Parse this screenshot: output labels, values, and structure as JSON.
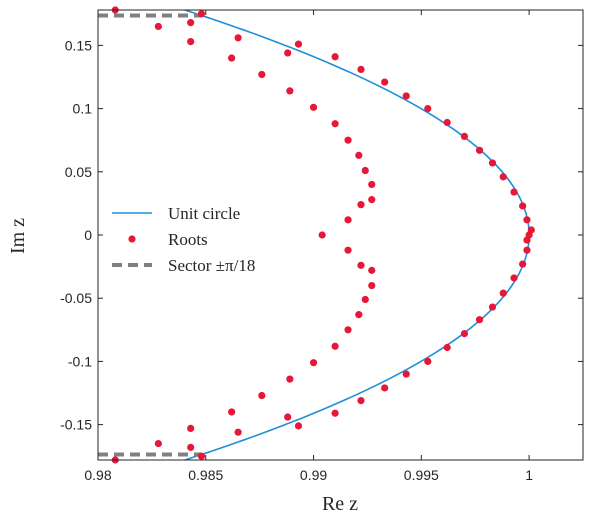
{
  "chart_data": {
    "type": "scatter",
    "title": "",
    "xlabel": "Re z",
    "ylabel": "Im z",
    "xlim": [
      0.98,
      1.0025
    ],
    "ylim": [
      -0.178,
      0.178
    ],
    "x_ticks": [
      0.98,
      0.985,
      0.99,
      0.995,
      1.0
    ],
    "x_tick_labels": [
      "0.98",
      "0.985",
      "0.99",
      "0.995",
      "1"
    ],
    "y_ticks": [
      0.15,
      0.1,
      0.05,
      0,
      -0.05,
      -0.1,
      -0.15
    ],
    "y_tick_labels": [
      "0.15",
      "0.1",
      "0.05",
      "0",
      "-0.05",
      "-0.1",
      "-0.15"
    ],
    "grid": false,
    "legend_position": "middle-left",
    "legend": [
      {
        "label": "Unit circle",
        "style": "line"
      },
      {
        "label": "Roots",
        "style": "marker"
      },
      {
        "label": "Sector ±π/18",
        "style": "dashed"
      }
    ],
    "series": [
      {
        "name": "Unit circle",
        "kind": "line",
        "color": "#1f8fd8",
        "equation": "x^2 + y^2 = 1"
      },
      {
        "name": "Roots",
        "kind": "points",
        "color": "#e8173a",
        "points": [
          [
            0.9808,
            0.178
          ],
          [
            0.9848,
            0.175
          ],
          [
            0.9828,
            0.165
          ],
          [
            0.9843,
            0.168
          ],
          [
            0.9843,
            0.153
          ],
          [
            0.9865,
            0.156
          ],
          [
            0.9862,
            0.14
          ],
          [
            0.9888,
            0.144
          ],
          [
            0.9876,
            0.127
          ],
          [
            0.9893,
            0.151
          ],
          [
            0.9889,
            0.114
          ],
          [
            0.991,
            0.141
          ],
          [
            0.99,
            0.101
          ],
          [
            0.9922,
            0.131
          ],
          [
            0.991,
            0.088
          ],
          [
            0.9933,
            0.121
          ],
          [
            0.9916,
            0.075
          ],
          [
            0.9943,
            0.11
          ],
          [
            0.9921,
            0.063
          ],
          [
            0.9953,
            0.1
          ],
          [
            0.9924,
            0.051
          ],
          [
            0.9962,
            0.089
          ],
          [
            0.9927,
            0.04
          ],
          [
            0.997,
            0.078
          ],
          [
            0.9927,
            0.028
          ],
          [
            0.9977,
            0.067
          ],
          [
            0.9922,
            0.024
          ],
          [
            0.9983,
            0.057
          ],
          [
            0.9916,
            0.012
          ],
          [
            0.9988,
            0.046
          ],
          [
            0.9904,
            0.0
          ],
          [
            0.9993,
            0.034
          ],
          [
            0.9997,
            0.023
          ],
          [
            0.9999,
            0.012
          ],
          [
            1.0001,
            0.004
          ],
          [
            1.0,
            0.0
          ],
          [
            0.9999,
            -0.004
          ],
          [
            0.9997,
            -0.023
          ],
          [
            0.9999,
            -0.012
          ],
          [
            0.9993,
            -0.034
          ],
          [
            0.9988,
            -0.046
          ],
          [
            0.9983,
            -0.057
          ],
          [
            0.9977,
            -0.067
          ],
          [
            0.997,
            -0.078
          ],
          [
            0.9962,
            -0.089
          ],
          [
            0.9953,
            -0.1
          ],
          [
            0.9943,
            -0.11
          ],
          [
            0.9933,
            -0.121
          ],
          [
            0.9922,
            -0.131
          ],
          [
            0.991,
            -0.141
          ],
          [
            0.9893,
            -0.151
          ],
          [
            0.9916,
            -0.012
          ],
          [
            0.9922,
            -0.024
          ],
          [
            0.9927,
            -0.028
          ],
          [
            0.9927,
            -0.04
          ],
          [
            0.9924,
            -0.051
          ],
          [
            0.9921,
            -0.063
          ],
          [
            0.9916,
            -0.075
          ],
          [
            0.991,
            -0.088
          ],
          [
            0.99,
            -0.101
          ],
          [
            0.9889,
            -0.114
          ],
          [
            0.9876,
            -0.127
          ],
          [
            0.9862,
            -0.14
          ],
          [
            0.9865,
            -0.156
          ],
          [
            0.9843,
            -0.153
          ],
          [
            0.9843,
            -0.168
          ],
          [
            0.9828,
            -0.165
          ],
          [
            0.9848,
            -0.175
          ],
          [
            0.9808,
            -0.178
          ],
          [
            0.9888,
            -0.144
          ]
        ]
      },
      {
        "name": "Sector ±π/18",
        "kind": "dashed-rays",
        "color": "#808080",
        "angle_label": "±π/18"
      }
    ]
  }
}
